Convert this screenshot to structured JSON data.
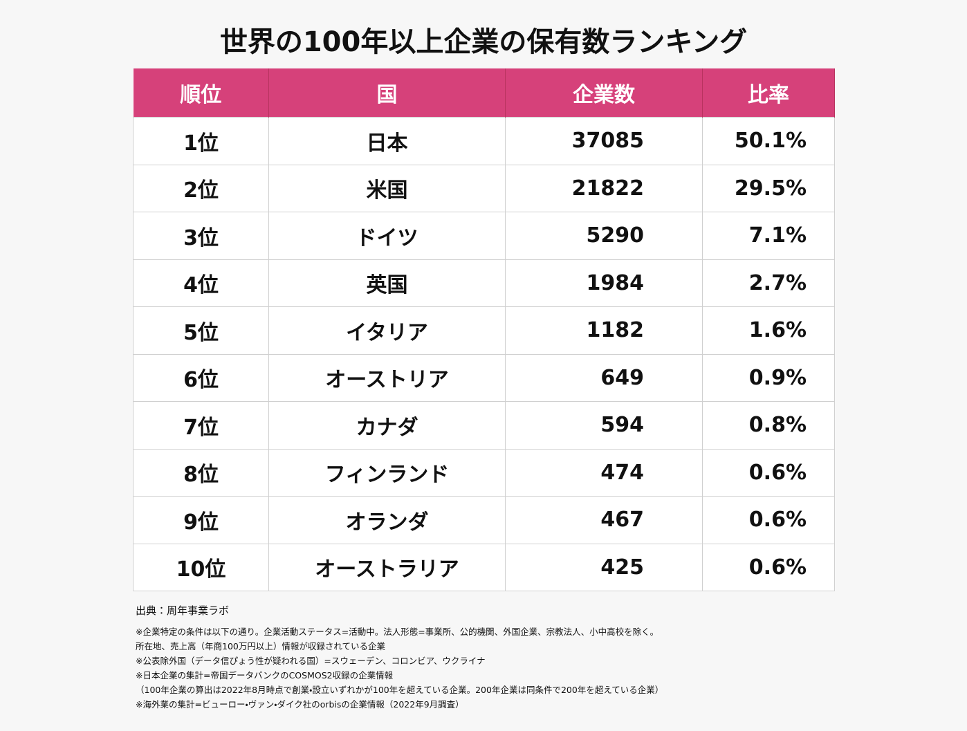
{
  "title": "世界の100年以上企業の保有数ランキング",
  "table": {
    "header": [
      "順位",
      "国",
      "企業数",
      "比率"
    ],
    "rows": [
      [
        "1位",
        "日本",
        "37085",
        "50.1%"
      ],
      [
        "2位",
        "米国",
        "21822",
        "29.5%"
      ],
      [
        "3位",
        "ドイツ",
        "5290",
        "7.1%"
      ],
      [
        "4位",
        "英国",
        "1984",
        "2.7%"
      ],
      [
        "5位",
        "イタリア",
        "1182",
        "1.6%"
      ],
      [
        "6位",
        "オーストリア",
        "649",
        "0.9%"
      ],
      [
        "7位",
        "カナダ",
        "594",
        "0.8%"
      ],
      [
        "8位",
        "フィンランド",
        "474",
        "0.6%"
      ],
      [
        "9位",
        "オランダ",
        "467",
        "0.6%"
      ],
      [
        "10位",
        "オーストラリア",
        "425",
        "0.6%"
      ]
    ]
  },
  "source": "出典：周年事業ラボ",
  "notes": [
    "※企業特定の条件は以下の通り。企業活動ステータス=活動中。法人形態=事業所、公的機関、外国企業、宗教法人、小中高校を除く。",
    "所在地、売上高（年商100万円以上）情報が収録されている企業",
    "※公表除外国（データ信ぴょう性が疑われる国）=スウェーデン、コロンビア、ウクライナ",
    "※日本企業の集計=帝国データバンクのCOSMOS2収録の企業情報",
    "（100年企業の算出は2022年8月時点で創業・設立いずれかが100年を超えている企業。200年企業は同条件で200年を超えている企業）",
    "※海外業の集計=ビューロー・ヴァン・ダイク社のorbisの企業情報（2022年9月調査）"
  ]
}
